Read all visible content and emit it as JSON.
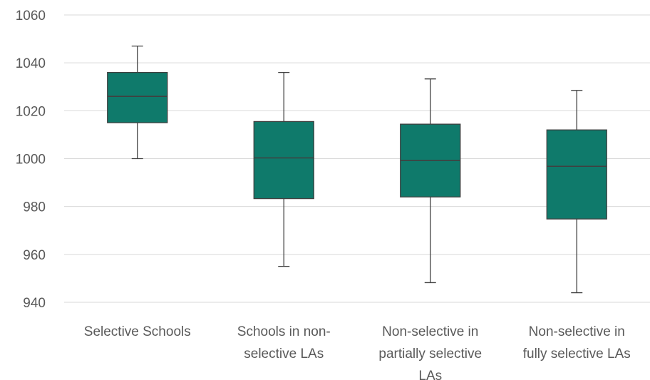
{
  "chart_data": {
    "type": "box",
    "categories": [
      [
        "Selective Schools"
      ],
      [
        "Schools in non-",
        "selective LAs"
      ],
      [
        "Non-selective in",
        "partially selective",
        "LAs"
      ],
      [
        "Non-selective in",
        "fully selective LAs"
      ]
    ],
    "boxes": [
      {
        "min": 1000,
        "q1": 1015,
        "median": 1026,
        "q3": 1036,
        "max": 1047
      },
      {
        "min": 955,
        "q1": 983.3,
        "median": 1000.3,
        "q3": 1015.5,
        "max": 1036
      },
      {
        "min": 948.2,
        "q1": 984,
        "median": 999.2,
        "q3": 1014.4,
        "max": 1033.3
      },
      {
        "min": 944,
        "q1": 974.8,
        "median": 996.8,
        "q3": 1012,
        "max": 1028.5
      }
    ],
    "ylim": [
      940,
      1060
    ],
    "yticks": [
      940,
      960,
      980,
      1000,
      1020,
      1040,
      1060
    ],
    "grid": true,
    "box_color": "#0f7a6b",
    "line_color": "#404040"
  }
}
